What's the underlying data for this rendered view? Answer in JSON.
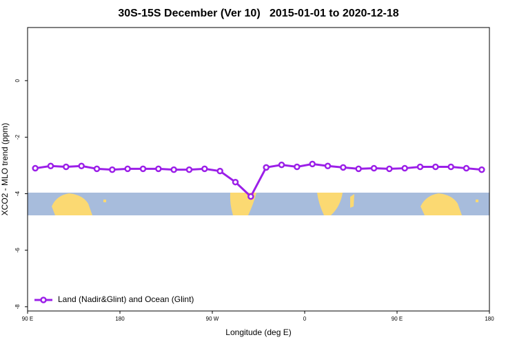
{
  "chart_data": {
    "type": "line",
    "title": "30S-15S December (Ver 10)   2015-01-01 to 2020-12-18",
    "x_label": "Longitude (deg E)",
    "y_label": "XCO2 - MLO trend (ppm)",
    "xlim": [
      90,
      540
    ],
    "xticks": [
      {
        "value": 90,
        "label": "90 E"
      },
      180,
      {
        "value": 270,
        "label": "90 W"
      },
      {
        "value": 360,
        "label": "0"
      },
      {
        "value": 450,
        "label": "90 E"
      },
      {
        "value": 540,
        "label": "180"
      }
    ],
    "ylim": [
      -8.15,
      1.88
    ],
    "yticks": [
      0,
      -2,
      -4,
      -6,
      -8
    ],
    "legend": "bottom-left",
    "series": [
      {
        "name": "Land (Nadir&Glint) and Ocean (Glint)",
        "color": "#9b1fe8",
        "x": [
          97.5,
          112.5,
          127.5,
          142.5,
          157.5,
          172.5,
          187.5,
          202.5,
          217.5,
          232.5,
          247.5,
          262.5,
          277.5,
          292.5,
          307.5,
          322.5,
          337.5,
          352.5,
          367.5,
          382.5,
          397.5,
          412.5,
          427.5,
          442.5,
          457.5,
          472.5,
          487.5,
          502.5,
          517.5,
          532.5
        ],
        "values": [
          -3.1,
          -3.02,
          -3.05,
          -3.02,
          -3.12,
          -3.15,
          -3.12,
          -3.12,
          -3.12,
          -3.15,
          -3.15,
          -3.12,
          -3.2,
          -3.59,
          -4.1,
          -3.07,
          -2.98,
          -3.05,
          -2.95,
          -3.02,
          -3.07,
          -3.12,
          -3.1,
          -3.12,
          -3.1,
          -3.05,
          -3.05,
          -3.05,
          -3.1,
          -3.15
        ]
      }
    ]
  }
}
